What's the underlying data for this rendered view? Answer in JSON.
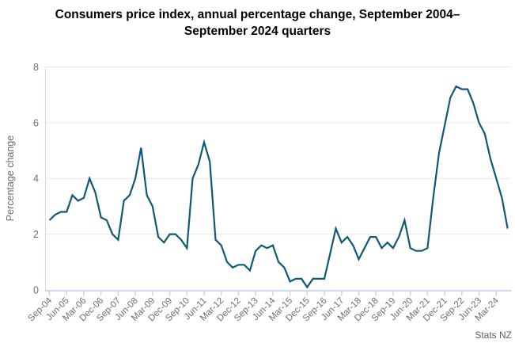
{
  "chart": {
    "title": "Consumers price index, annual percentage change, September 2004–September 2024 quarters",
    "ylabel": "Percentage change",
    "source": "Stats NZ"
  },
  "colors": {
    "line": "#0e5a74",
    "grid": "#e9e9e9",
    "axis": "#ccd6ec",
    "tick_label": "#6e6e6e",
    "title": "#000000",
    "source_text": "#5e5e5e"
  },
  "chart_data": {
    "type": "line",
    "title": "Consumers price index, annual percentage change, September 2004–September 2024 quarters",
    "xlabel": "",
    "ylabel": "Percentage change",
    "source": "Stats NZ",
    "ylim": [
      0,
      8
    ],
    "y_ticks": [
      0,
      2,
      4,
      6,
      8
    ],
    "x_tick_every": 3,
    "grid": "horizontal",
    "legend": "none",
    "line_color": "#0e5a74",
    "quarters": [
      "Sep-04",
      "Dec-04",
      "Mar-05",
      "Jun-05",
      "Sep-05",
      "Dec-05",
      "Mar-06",
      "Jun-06",
      "Sep-06",
      "Dec-06",
      "Mar-07",
      "Jun-07",
      "Sep-07",
      "Dec-07",
      "Mar-08",
      "Jun-08",
      "Sep-08",
      "Dec-08",
      "Mar-09",
      "Jun-09",
      "Sep-09",
      "Dec-09",
      "Mar-10",
      "Jun-10",
      "Sep-10",
      "Dec-10",
      "Mar-11",
      "Jun-11",
      "Sep-11",
      "Dec-11",
      "Mar-12",
      "Jun-12",
      "Sep-12",
      "Dec-12",
      "Mar-13",
      "Jun-13",
      "Sep-13",
      "Dec-13",
      "Mar-14",
      "Jun-14",
      "Sep-14",
      "Dec-14",
      "Mar-15",
      "Jun-15",
      "Sep-15",
      "Dec-15",
      "Mar-16",
      "Jun-16",
      "Sep-16",
      "Dec-16",
      "Mar-17",
      "Jun-17",
      "Sep-17",
      "Dec-17",
      "Mar-18",
      "Jun-18",
      "Sep-18",
      "Dec-18",
      "Mar-19",
      "Jun-19",
      "Sep-19",
      "Dec-19",
      "Mar-20",
      "Jun-20",
      "Sep-20",
      "Dec-20",
      "Mar-21",
      "Jun-21",
      "Sep-21",
      "Dec-21",
      "Mar-22",
      "Jun-22",
      "Sep-22",
      "Dec-22",
      "Mar-23",
      "Jun-23",
      "Sep-23",
      "Dec-23",
      "Mar-24",
      "Jun-24",
      "Sep-24"
    ],
    "values": [
      2.5,
      2.7,
      2.8,
      2.8,
      3.4,
      3.2,
      3.3,
      4.0,
      3.5,
      2.6,
      2.5,
      2.0,
      1.8,
      3.2,
      3.4,
      4.0,
      5.1,
      3.4,
      3.0,
      1.9,
      1.7,
      2.0,
      2.0,
      1.8,
      1.5,
      4.0,
      4.5,
      5.3,
      4.6,
      1.8,
      1.6,
      1.0,
      0.8,
      0.9,
      0.9,
      0.7,
      1.4,
      1.6,
      1.5,
      1.6,
      1.0,
      0.8,
      0.3,
      0.4,
      0.4,
      0.1,
      0.4,
      0.4,
      0.4,
      1.3,
      2.2,
      1.7,
      1.9,
      1.6,
      1.1,
      1.5,
      1.9,
      1.9,
      1.5,
      1.7,
      1.5,
      1.9,
      2.5,
      1.5,
      1.4,
      1.4,
      1.5,
      3.3,
      4.9,
      5.9,
      6.9,
      7.3,
      7.2,
      7.2,
      6.7,
      6.0,
      5.6,
      4.7,
      4.0,
      3.3,
      2.2
    ]
  }
}
